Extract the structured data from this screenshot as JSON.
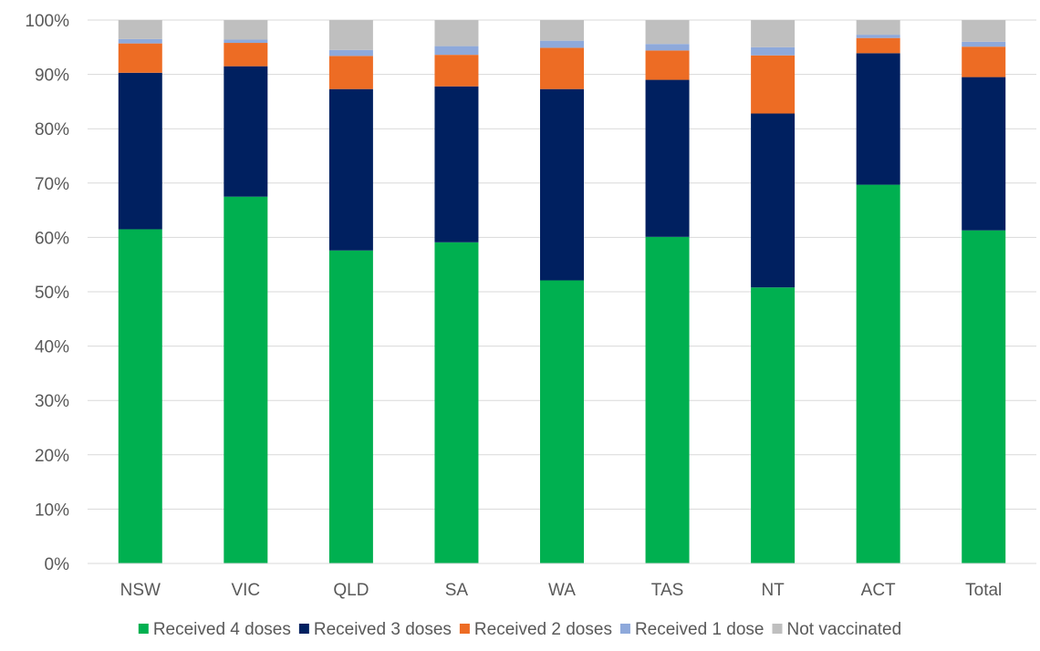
{
  "chart_data": {
    "type": "bar",
    "stacked": true,
    "title": "",
    "xlabel": "",
    "ylabel": "",
    "categories": [
      "NSW",
      "VIC",
      "QLD",
      "SA",
      "WA",
      "TAS",
      "NT",
      "ACT",
      "Total"
    ],
    "ylim": [
      0,
      100
    ],
    "yticks": [
      "0%",
      "10%",
      "20%",
      "30%",
      "40%",
      "50%",
      "60%",
      "70%",
      "80%",
      "90%",
      "100%"
    ],
    "grid": true,
    "legend_position": "bottom",
    "series": [
      {
        "name": "Received 4 doses",
        "color": "#00B050",
        "values": [
          61.5,
          67.5,
          57.6,
          59.1,
          52.1,
          60.1,
          50.8,
          69.7,
          61.3
        ]
      },
      {
        "name": "Received 3 doses",
        "color": "#002060",
        "values": [
          28.8,
          24.0,
          29.7,
          28.7,
          35.2,
          28.9,
          32.0,
          24.2,
          28.2
        ]
      },
      {
        "name": "Received 2 doses",
        "color": "#ED6C24",
        "values": [
          5.4,
          4.3,
          6.1,
          5.8,
          7.6,
          5.4,
          10.7,
          2.8,
          5.6
        ]
      },
      {
        "name": "Received 1 dose",
        "color": "#8EA9DB",
        "values": [
          0.8,
          0.6,
          1.1,
          1.6,
          1.3,
          1.2,
          1.5,
          0.6,
          0.9
        ]
      },
      {
        "name": "Not vaccinated",
        "color": "#BFBFBF",
        "values": [
          3.5,
          3.6,
          5.5,
          4.8,
          3.8,
          4.4,
          5.0,
          2.7,
          4.0
        ]
      }
    ]
  }
}
